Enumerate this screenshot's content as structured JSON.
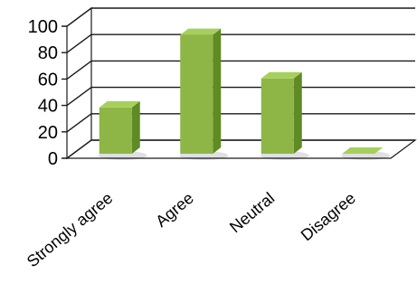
{
  "chart_data": {
    "type": "bar",
    "title": "",
    "xlabel": "",
    "ylabel": "",
    "categories": [
      "Strongly agree",
      "Agree",
      "Neutral",
      "Disagree"
    ],
    "values": [
      35,
      90,
      57,
      0
    ],
    "ylim": [
      0,
      100
    ],
    "yticks": [
      "0",
      "20",
      "40",
      "60",
      "80",
      "100"
    ],
    "grid": true,
    "three_d": true,
    "colors": {
      "bar_front": "#8db646",
      "bar_top": "#a7cf5c",
      "bar_side": "#5f8a24",
      "gridline": "#1a1a1a",
      "wall": "#ffffff"
    }
  }
}
